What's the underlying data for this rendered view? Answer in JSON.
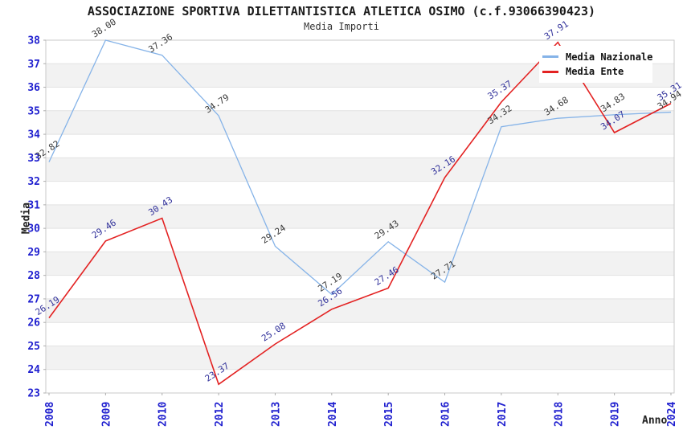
{
  "chart_data": {
    "type": "line",
    "title": "ASSOCIAZIONE SPORTIVA DILETTANTISTICA ATLETICA OSIMO (c.f.93066390423)",
    "subtitle": "Media Importi",
    "xlabel": "Anno",
    "ylabel": "Media",
    "categories": [
      "2008",
      "2009",
      "2010",
      "2012",
      "2013",
      "2014",
      "2015",
      "2016",
      "2017",
      "2018",
      "2019",
      "2024"
    ],
    "series": [
      {
        "name": "Media Nazionale",
        "color": "#85b3e8",
        "label_color": "#3a3a3a",
        "values": [
          32.82,
          38.0,
          37.36,
          34.79,
          29.24,
          27.19,
          29.43,
          27.71,
          34.32,
          34.68,
          34.83,
          34.94
        ],
        "labels": [
          "32.82",
          "38.00",
          "37.36",
          "34.79",
          "29.24",
          "27.19",
          "29.43",
          "27.71",
          "34.32",
          "34.68",
          "34.83",
          "34.94"
        ]
      },
      {
        "name": "Media Ente",
        "color": "#e32222",
        "label_color": "#30309a",
        "values": [
          26.19,
          29.46,
          30.43,
          23.37,
          25.08,
          26.56,
          27.46,
          32.16,
          35.37,
          37.91,
          34.07,
          35.31
        ],
        "labels": [
          "26.19",
          "29.46",
          "30.43",
          "23.37",
          "25.08",
          "26.56",
          "27.46",
          "32.16",
          "35.37",
          "37.91",
          "34.07",
          "35.31"
        ]
      }
    ],
    "ylim": [
      23,
      38
    ],
    "ytick_step": 1,
    "yticks": [
      23,
      24,
      25,
      26,
      27,
      28,
      29,
      30,
      31,
      32,
      33,
      34,
      35,
      36,
      37,
      38
    ],
    "grid": "horizontal-bands",
    "legend_position": "top-right"
  },
  "colors": {
    "tick_label": "#1f1fcf",
    "band_gray": "#f2f2f2",
    "band_white": "#ffffff",
    "gridline": "#e2e2e2",
    "plot_border": "#c9c9c9",
    "tick_mark": "#adadad",
    "title_text": "#1a1a1a"
  }
}
